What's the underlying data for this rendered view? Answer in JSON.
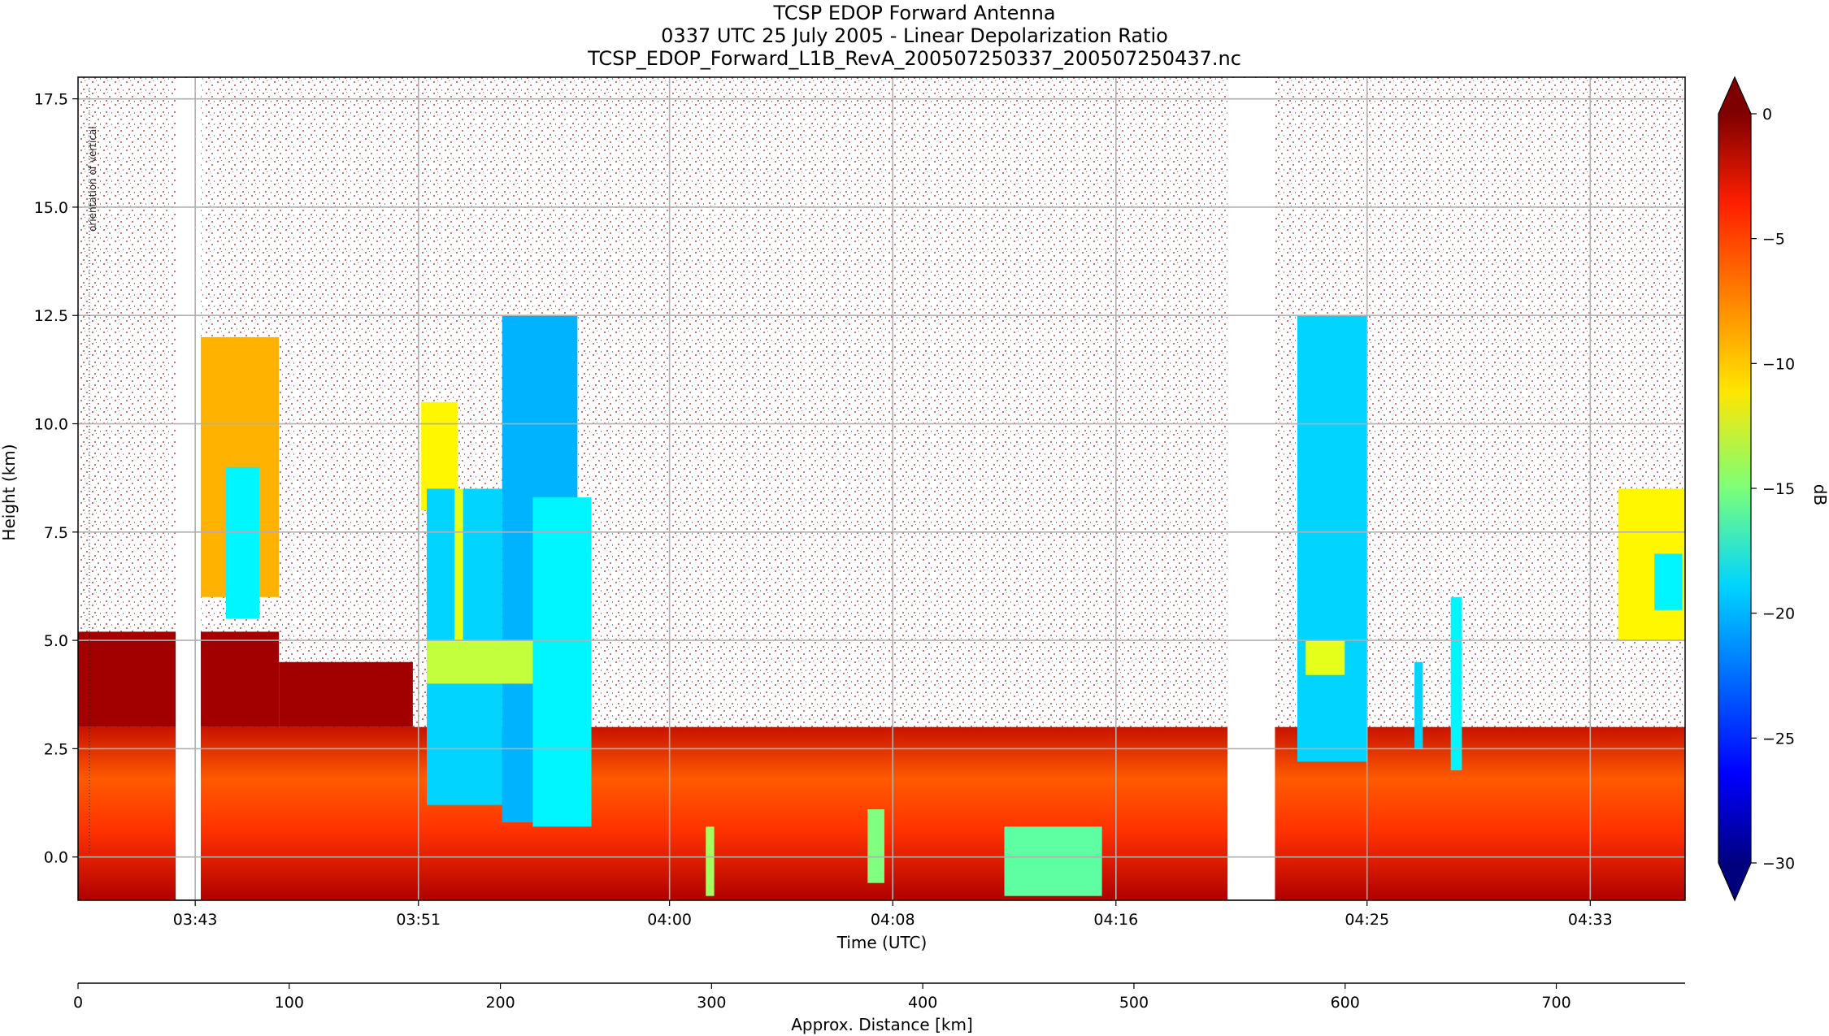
{
  "title_lines": [
    "TCSP EDOP Forward Antenna",
    "0337 UTC 25 July 2005 - Linear Depolarization Ratio",
    "TCSP_EDOP_Forward_L1B_RevA_200507250337_200507250437.nc"
  ],
  "chart_data": {
    "type": "heatmap",
    "title": "TCSP EDOP Forward Antenna",
    "subtitle": "0337 UTC 25 July 2005 - Linear Depolarization Ratio",
    "file_name": "TCSP_EDOP_Forward_L1B_RevA_200507250337_200507250437.nc",
    "xlabel": "Time (UTC)",
    "ylabel": "Height (km)",
    "secondary_xlabel": "Approx. Distance [km]",
    "colorbar_label": "dB",
    "x_ticks": [
      "03:43",
      "03:51",
      "04:00",
      "04:08",
      "04:16",
      "04:25",
      "04:33"
    ],
    "x_tick_minutes": [
      223,
      231,
      240,
      248,
      256,
      265,
      273
    ],
    "x_range_minutes": [
      218.8,
      276.4
    ],
    "y_ticks": [
      0.0,
      2.5,
      5.0,
      7.5,
      10.0,
      12.5,
      15.0,
      17.5
    ],
    "y_tick_labels": [
      "0.0",
      "2.5",
      "5.0",
      "7.5",
      "10.0",
      "12.5",
      "15.0",
      "17.5"
    ],
    "ylim": [
      -1.0,
      18.0
    ],
    "distance_ticks": [
      0,
      100,
      200,
      300,
      400,
      500,
      600,
      700
    ],
    "distance_range_km": [
      0,
      761
    ],
    "colorbar_ticks": [
      0,
      -5,
      -10,
      -15,
      -20,
      -25,
      -30
    ],
    "colorbar_range": [
      -30,
      0
    ],
    "colormap": "jet",
    "grid": true,
    "data_gaps_minutes": [
      [
        222.3,
        223.2
      ],
      [
        260.0,
        261.7
      ]
    ],
    "annotation": "orientation of vertical",
    "features": [
      {
        "start_min": 218.8,
        "end_min": 276.4,
        "top_km": 3.0,
        "bottom_km": -1.0,
        "value_db": -4
      },
      {
        "start_min": 218.8,
        "end_min": 226.0,
        "top_km": 5.2,
        "bottom_km": 3.0,
        "value_db": -1
      },
      {
        "start_min": 226.0,
        "end_min": 230.8,
        "top_km": 4.5,
        "bottom_km": 3.0,
        "value_db": -1
      },
      {
        "start_min": 223.2,
        "end_min": 226.0,
        "top_km": 12.0,
        "bottom_km": 6.0,
        "value_db": -9
      },
      {
        "start_min": 224.1,
        "end_min": 225.3,
        "top_km": 9.0,
        "bottom_km": 5.5,
        "value_db": -19
      },
      {
        "start_min": 231.1,
        "end_min": 232.4,
        "top_km": 10.5,
        "bottom_km": 8.0,
        "value_db": -11
      },
      {
        "start_min": 231.3,
        "end_min": 234.0,
        "top_km": 8.5,
        "bottom_km": 1.2,
        "value_db": -20
      },
      {
        "start_min": 234.0,
        "end_min": 236.7,
        "top_km": 12.5,
        "bottom_km": 0.8,
        "value_db": -21
      },
      {
        "start_min": 231.3,
        "end_min": 236.7,
        "top_km": 5.0,
        "bottom_km": 4.0,
        "value_db": -13
      },
      {
        "start_min": 235.1,
        "end_min": 237.2,
        "top_km": 8.3,
        "bottom_km": 0.7,
        "value_db": -19
      },
      {
        "start_min": 232.3,
        "end_min": 232.6,
        "top_km": 8.5,
        "bottom_km": 5.0,
        "value_db": -12
      },
      {
        "start_min": 241.3,
        "end_min": 241.6,
        "top_km": 0.7,
        "bottom_km": -0.9,
        "value_db": -14
      },
      {
        "start_min": 247.1,
        "end_min": 247.7,
        "top_km": 1.1,
        "bottom_km": -0.6,
        "value_db": -15
      },
      {
        "start_min": 252.0,
        "end_min": 255.5,
        "top_km": 0.7,
        "bottom_km": -0.9,
        "value_db": -16
      },
      {
        "start_min": 262.5,
        "end_min": 265.0,
        "top_km": 12.5,
        "bottom_km": 2.2,
        "value_db": -20
      },
      {
        "start_min": 262.8,
        "end_min": 264.2,
        "top_km": 5.0,
        "bottom_km": 4.2,
        "value_db": -12
      },
      {
        "start_min": 266.7,
        "end_min": 267.0,
        "top_km": 4.5,
        "bottom_km": 2.5,
        "value_db": -20
      },
      {
        "start_min": 268.0,
        "end_min": 268.4,
        "top_km": 6.0,
        "bottom_km": 2.0,
        "value_db": -19
      },
      {
        "start_min": 274.0,
        "end_min": 276.4,
        "top_km": 8.5,
        "bottom_km": 5.0,
        "value_db": -11
      },
      {
        "start_min": 275.3,
        "end_min": 276.3,
        "top_km": 7.0,
        "bottom_km": 5.7,
        "value_db": -19
      }
    ]
  }
}
